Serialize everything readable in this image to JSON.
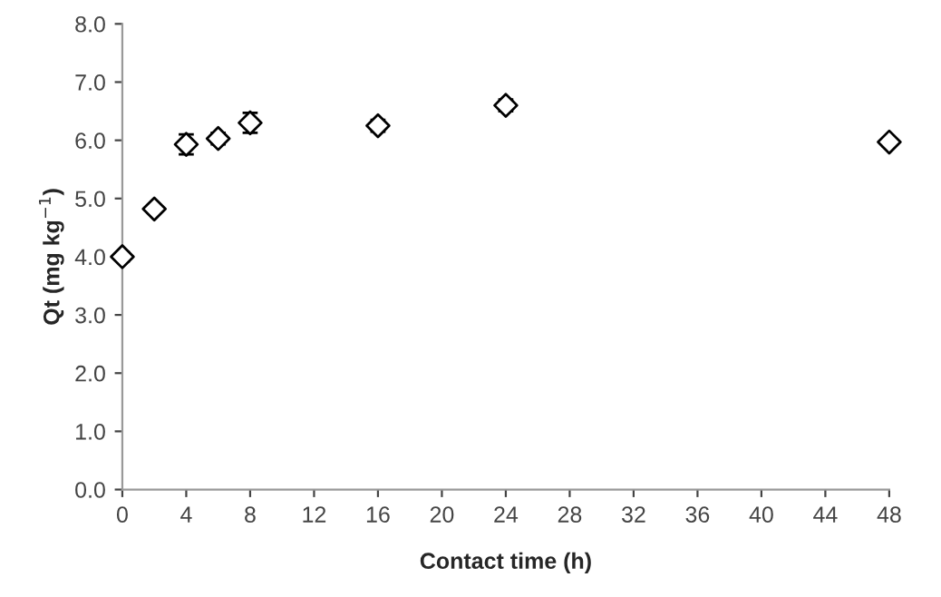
{
  "chart_data": {
    "type": "scatter",
    "xlabel": "Contact time (h)",
    "ylabel": "Qt (mg kg$^{−1}$)",
    "x": [
      0,
      2,
      4,
      6,
      8,
      16,
      24,
      48
    ],
    "series": [
      {
        "color": "#000000",
        "values": [
          4.0,
          4.82,
          5.93,
          6.03,
          6.3,
          6.25,
          6.6,
          5.97
        ],
        "errors": [
          0.08,
          0.06,
          0.17,
          0.1,
          0.17,
          0.1,
          0.1,
          0.07
        ]
      }
    ],
    "marker": "diamond",
    "xlim": [
      0,
      48
    ],
    "xticks": [
      0,
      4,
      8,
      12,
      16,
      20,
      24,
      28,
      32,
      36,
      40,
      44,
      48
    ],
    "ylim": [
      0,
      8
    ],
    "yticks": [
      {
        "value": 0,
        "label": "0.0"
      },
      {
        "value": 1,
        "label": "1.0"
      },
      {
        "value": 2,
        "label": "2.0"
      },
      {
        "value": 3,
        "label": "3.0"
      },
      {
        "value": 4,
        "label": "4.0"
      },
      {
        "value": 5,
        "label": "5.0"
      },
      {
        "value": 6,
        "label": "6.0"
      },
      {
        "value": 7,
        "label": "7.0"
      },
      {
        "value": 8,
        "label": "8.0"
      }
    ],
    "grid": false
  }
}
